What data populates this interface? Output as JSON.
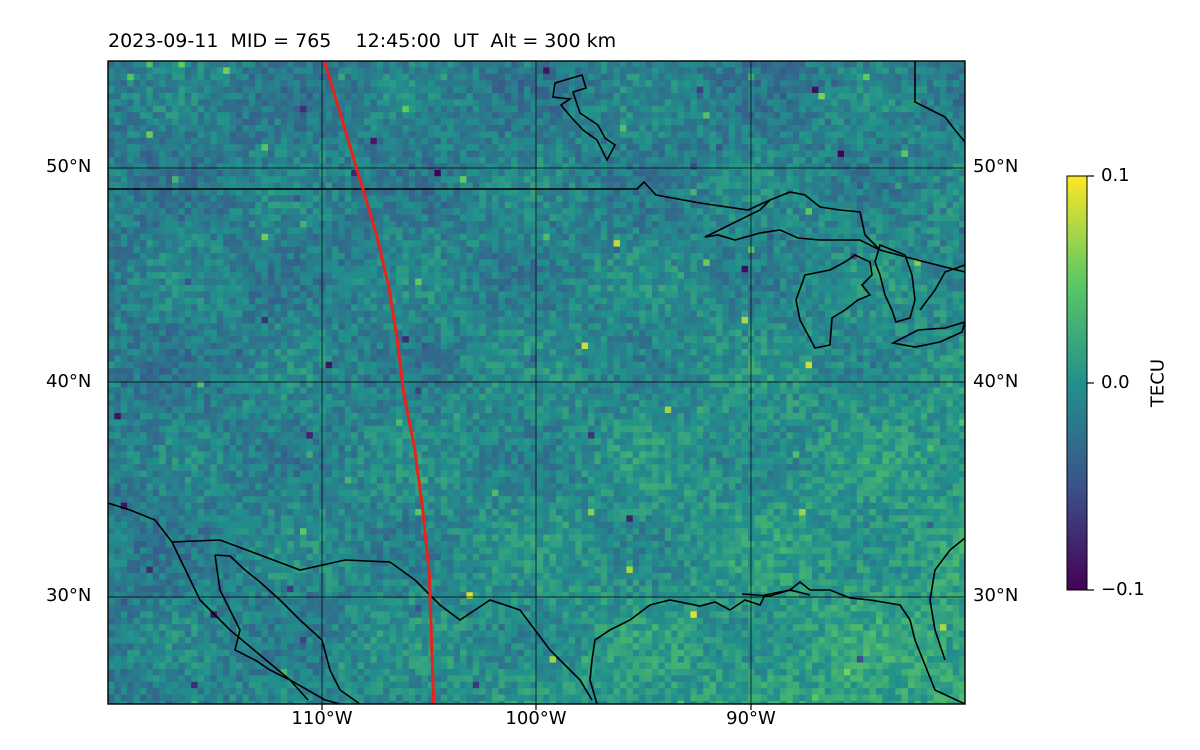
{
  "title": "2023-09-11  MID = 765    12:45:00  UT  Alt = 300 km",
  "map": {
    "lat_range": [
      25,
      55
    ],
    "lon_range": [
      -120,
      -80
    ],
    "lat_ticks": [
      {
        "value": 50,
        "label": "50°N"
      },
      {
        "value": 40,
        "label": "40°N"
      },
      {
        "value": 30,
        "label": "30°N"
      }
    ],
    "lon_ticks": [
      {
        "value": -110,
        "label": "110°W"
      },
      {
        "value": -100,
        "label": "100°W"
      },
      {
        "value": -90,
        "label": "90°W"
      }
    ],
    "gridlines": true,
    "colormap": "viridis",
    "track_color": "#e8231c",
    "track": [
      [
        -109.9,
        55
      ],
      [
        -108.7,
        51
      ],
      [
        -108.1,
        49
      ],
      [
        -107.5,
        47
      ],
      [
        -106.9,
        44.5
      ],
      [
        -106.5,
        42
      ],
      [
        -106.2,
        39.5
      ],
      [
        -105.7,
        37
      ],
      [
        -105.3,
        34
      ],
      [
        -105.0,
        31
      ],
      [
        -104.9,
        28
      ],
      [
        -104.8,
        25
      ]
    ]
  },
  "colorbar": {
    "label": "TECU",
    "min": -0.1,
    "max": 0.1,
    "ticks": [
      "0.1",
      "0.0",
      "−0.1"
    ]
  }
}
